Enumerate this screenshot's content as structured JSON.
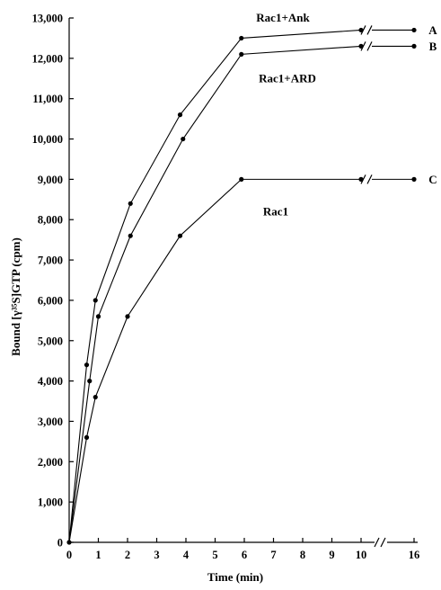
{
  "chart_data": {
    "type": "line",
    "xlabel": "Time (min)",
    "ylabel": "Bound [γ³⁵S]GTP (cpm)",
    "ylim": [
      0,
      13000
    ],
    "y_ticks": [
      0,
      1000,
      2000,
      3000,
      4000,
      5000,
      6000,
      7000,
      8000,
      9000,
      10000,
      11000,
      12000,
      13000
    ],
    "y_tick_labels": [
      "0",
      "1,000",
      "2,000",
      "3,000",
      "4,000",
      "5,000",
      "6,000",
      "7,000",
      "8,000",
      "9,000",
      "10,000",
      "11,000",
      "12,000",
      "13,000"
    ],
    "x_ticks": [
      0,
      1,
      2,
      3,
      4,
      5,
      6,
      7,
      8,
      9,
      10,
      16
    ],
    "x_tick_labels": [
      "0",
      "1",
      "2",
      "3",
      "4",
      "5",
      "6",
      "7",
      "8",
      "9",
      "10",
      "16"
    ],
    "x_axis_break": "//",
    "series": [
      {
        "name": "Rac1+Ank",
        "letter": "A",
        "x": [
          0,
          0.6,
          0.9,
          2.1,
          3.8,
          5.9,
          10,
          16
        ],
        "y": [
          0,
          4400,
          6000,
          8400,
          10600,
          12500,
          12700,
          12700
        ]
      },
      {
        "name": "Rac1+ARD",
        "letter": "B",
        "x": [
          0,
          0.7,
          1.0,
          2.1,
          3.9,
          5.9,
          10,
          16
        ],
        "y": [
          0,
          4000,
          5600,
          7600,
          10000,
          12100,
          12300,
          12300
        ]
      },
      {
        "name": "Rac1",
        "letter": "C",
        "x": [
          0,
          0.6,
          0.9,
          2.0,
          3.8,
          5.9,
          10,
          16
        ],
        "y": [
          0,
          2600,
          3600,
          5600,
          7600,
          9000,
          9000,
          9000
        ]
      }
    ]
  }
}
